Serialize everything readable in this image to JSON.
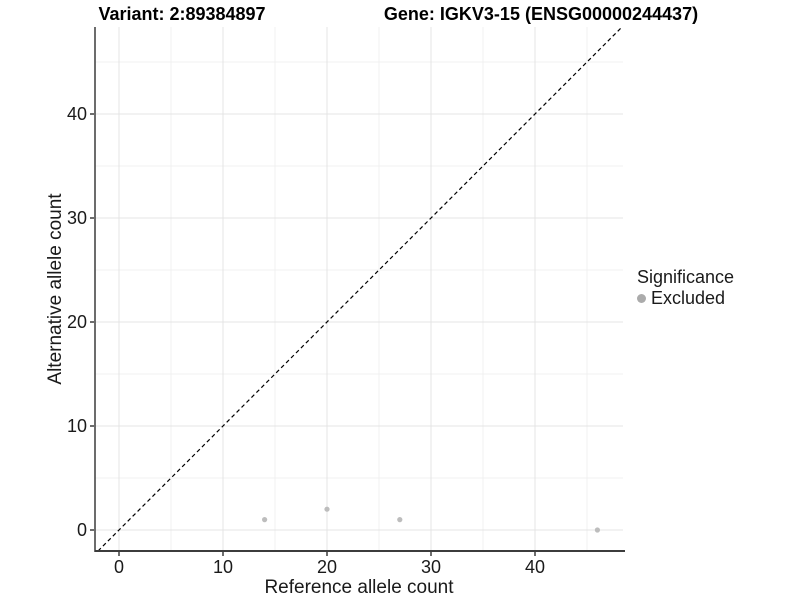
{
  "chart_data": {
    "type": "scatter",
    "title_left": "Variant: 2:89384897",
    "title_right": "Gene: IGKV3-15 (ENSG00000244437)",
    "xlabel": "Reference allele count",
    "ylabel": "Alternative allele count",
    "xlim": [
      -2.3,
      48.5
    ],
    "ylim": [
      -2.1,
      48.4
    ],
    "xticks": [
      0,
      10,
      20,
      30,
      40
    ],
    "yticks": [
      0,
      10,
      20,
      30,
      40
    ],
    "x_minor": [
      5,
      15,
      25,
      35,
      45
    ],
    "y_minor": [
      5,
      15,
      25,
      35,
      45
    ],
    "grid": true,
    "series": [
      {
        "name": "Excluded",
        "color": "#bdbdbd",
        "points": [
          [
            14,
            1
          ],
          [
            20,
            2
          ],
          [
            27,
            1
          ],
          [
            46,
            0
          ]
        ]
      }
    ],
    "abline": {
      "slope": 1,
      "intercept": 0,
      "style": "dashed",
      "color": "#000000"
    },
    "legend": {
      "title": "Significance",
      "position": "right",
      "items": [
        {
          "label": "Excluded",
          "color": "#ababab"
        }
      ]
    },
    "style_colors": {
      "grid_major": "#e4e4e4",
      "grid_minor": "#f1f1f1",
      "axis_line": "#3c3c3c",
      "tick_text": "#1a1a1a"
    }
  }
}
